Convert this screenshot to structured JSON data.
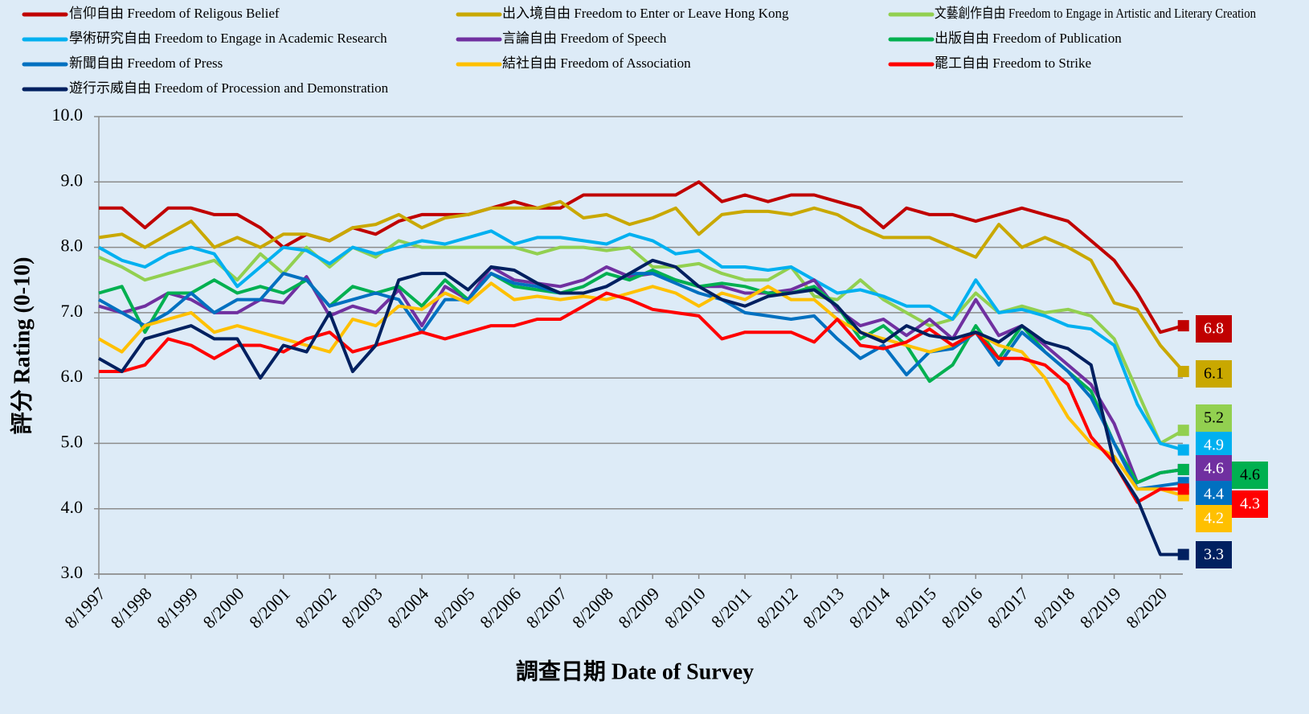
{
  "chart_data": {
    "type": "line",
    "xlabel": "調查日期 Date of Survey",
    "ylabel": "評分 Rating (0-10)",
    "categories": [
      "8/1997",
      null,
      "8/1998",
      null,
      "8/1999",
      null,
      "8/2000",
      null,
      "8/2001",
      null,
      "8/2002",
      null,
      "8/2003",
      null,
      "8/2004",
      null,
      "8/2005",
      null,
      "8/2006",
      null,
      "8/2007",
      null,
      "8/2008",
      null,
      "8/2009",
      null,
      "8/2010",
      null,
      "8/2011",
      null,
      "8/2012",
      null,
      "8/2013",
      null,
      "8/2014",
      null,
      "8/2015",
      null,
      "8/2016",
      null,
      "8/2017",
      null,
      "8/2018",
      null,
      "8/2019",
      null,
      "8/2020",
      null
    ],
    "ylim": [
      3,
      10
    ],
    "yticks": [
      {
        "value": 3,
        "label": "3.0"
      },
      {
        "value": 4,
        "label": "4.0"
      },
      {
        "value": 5,
        "label": "5.0"
      },
      {
        "value": 6,
        "label": "6.0"
      },
      {
        "value": 7,
        "label": "7.0"
      },
      {
        "value": 8,
        "label": "8.0"
      },
      {
        "value": 9,
        "label": "9.0"
      },
      {
        "value": 10,
        "label": "10.0"
      }
    ],
    "grid": true,
    "legend": "top",
    "series": [
      {
        "name": "信仰自由 Freedom of Religous Belief",
        "color": "#C00000",
        "values": [
          8.6,
          8.6,
          8.3,
          8.6,
          8.6,
          8.5,
          8.5,
          8.3,
          8.0,
          8.2,
          8.1,
          8.3,
          8.2,
          8.4,
          8.5,
          8.5,
          8.5,
          8.6,
          8.7,
          8.6,
          8.6,
          8.8,
          8.8,
          8.8,
          8.8,
          8.8,
          9.0,
          8.7,
          8.8,
          8.7,
          8.8,
          8.8,
          8.7,
          8.6,
          8.3,
          8.6,
          8.5,
          8.5,
          8.4,
          8.5,
          8.6,
          8.5,
          8.4,
          8.1,
          7.8,
          7.3,
          6.7,
          6.8
        ]
      },
      {
        "name": "出入境自由 Freedom to Enter or Leave Hong Kong",
        "color": "#C9A800",
        "values": [
          8.15,
          8.2,
          8.0,
          8.2,
          8.4,
          8.0,
          8.15,
          8.0,
          8.2,
          8.2,
          8.1,
          8.3,
          8.35,
          8.5,
          8.3,
          8.45,
          8.5,
          8.6,
          8.6,
          8.6,
          8.7,
          8.45,
          8.5,
          8.35,
          8.45,
          8.6,
          8.2,
          8.5,
          8.55,
          8.55,
          8.5,
          8.6,
          8.5,
          8.3,
          8.15,
          8.15,
          8.15,
          8.0,
          7.85,
          8.35,
          8.0,
          8.15,
          8.0,
          7.8,
          7.15,
          7.05,
          6.5,
          6.1
        ]
      },
      {
        "name": "文藝創作自由 Freedom to Engage in Artistic and Literary Creation",
        "color": "#92D050",
        "values": [
          7.85,
          7.7,
          7.5,
          7.6,
          7.7,
          7.8,
          7.5,
          7.9,
          7.6,
          8.0,
          7.7,
          8.0,
          7.85,
          8.1,
          8.0,
          8.0,
          8.0,
          8.0,
          8.0,
          7.9,
          8.0,
          8.0,
          7.95,
          8.0,
          7.7,
          7.7,
          7.75,
          7.6,
          7.5,
          7.5,
          7.7,
          7.25,
          7.2,
          7.5,
          7.2,
          7.0,
          6.8,
          6.9,
          7.3,
          7.0,
          7.1,
          7.0,
          7.05,
          6.95,
          6.6,
          5.8,
          5.0,
          5.2
        ]
      },
      {
        "name": "學術研究自由 Freedom to Engage in Academic Research",
        "color": "#00B0F0",
        "values": [
          8.0,
          7.8,
          7.7,
          7.9,
          8.0,
          7.9,
          7.4,
          7.7,
          8.0,
          7.95,
          7.75,
          8.0,
          7.9,
          8.0,
          8.1,
          8.05,
          8.15,
          8.25,
          8.05,
          8.15,
          8.15,
          8.1,
          8.05,
          8.2,
          8.1,
          7.9,
          7.95,
          7.7,
          7.7,
          7.65,
          7.7,
          7.5,
          7.3,
          7.35,
          7.25,
          7.1,
          7.1,
          6.9,
          7.5,
          7.0,
          7.05,
          6.95,
          6.8,
          6.75,
          6.5,
          5.6,
          5.0,
          4.9
        ]
      },
      {
        "name": "言論自由 Freedom of Speech",
        "color": "#7030A0",
        "values": [
          7.1,
          7.0,
          7.1,
          7.3,
          7.2,
          7.0,
          7.0,
          7.2,
          7.15,
          7.55,
          6.95,
          7.1,
          7.0,
          7.35,
          6.8,
          7.4,
          7.2,
          7.7,
          7.5,
          7.45,
          7.4,
          7.5,
          7.7,
          7.55,
          7.6,
          7.5,
          7.4,
          7.4,
          7.3,
          7.3,
          7.35,
          7.5,
          7.05,
          6.8,
          6.9,
          6.65,
          6.9,
          6.6,
          7.2,
          6.65,
          6.8,
          6.5,
          6.2,
          5.9,
          5.3,
          4.4,
          4.55,
          4.6
        ]
      },
      {
        "name": "出版自由 Freedom of Publication",
        "color": "#00B050",
        "values": [
          7.3,
          7.4,
          6.7,
          7.3,
          7.3,
          7.5,
          7.3,
          7.4,
          7.3,
          7.5,
          7.1,
          7.4,
          7.3,
          7.4,
          7.1,
          7.5,
          7.2,
          7.6,
          7.4,
          7.35,
          7.3,
          7.4,
          7.6,
          7.5,
          7.65,
          7.5,
          7.4,
          7.45,
          7.4,
          7.3,
          7.3,
          7.4,
          7.1,
          6.6,
          6.8,
          6.5,
          5.95,
          6.2,
          6.8,
          6.3,
          6.8,
          6.4,
          6.1,
          5.8,
          5.0,
          4.4,
          4.55,
          4.6
        ]
      },
      {
        "name": "新聞自由 Freedom of Press",
        "color": "#0070C0",
        "values": [
          7.2,
          7.0,
          6.8,
          7.0,
          7.3,
          7.0,
          7.2,
          7.2,
          7.6,
          7.5,
          7.1,
          7.2,
          7.3,
          7.2,
          6.7,
          7.2,
          7.2,
          7.6,
          7.45,
          7.4,
          7.3,
          7.3,
          7.4,
          7.6,
          7.6,
          7.45,
          7.3,
          7.2,
          7.0,
          6.95,
          6.9,
          6.95,
          6.6,
          6.3,
          6.5,
          6.05,
          6.4,
          6.45,
          6.7,
          6.2,
          6.7,
          6.4,
          6.1,
          5.7,
          5.0,
          4.3,
          4.35,
          4.4
        ]
      },
      {
        "name": "結社自由 Freedom of Association",
        "color": "#FFC000",
        "values": [
          6.6,
          6.4,
          6.8,
          6.9,
          7.0,
          6.7,
          6.8,
          6.7,
          6.6,
          6.5,
          6.4,
          6.9,
          6.8,
          7.1,
          7.05,
          7.3,
          7.15,
          7.45,
          7.2,
          7.25,
          7.2,
          7.25,
          7.2,
          7.3,
          7.4,
          7.3,
          7.1,
          7.3,
          7.2,
          7.4,
          7.2,
          7.2,
          6.9,
          6.7,
          6.6,
          6.5,
          6.4,
          6.5,
          6.7,
          6.5,
          6.4,
          6.0,
          5.4,
          5.0,
          4.8,
          4.3,
          4.3,
          4.2
        ]
      },
      {
        "name": "罷工自由 Freedom to Strike",
        "color": "#FF0000",
        "values": [
          6.1,
          6.1,
          6.2,
          6.6,
          6.5,
          6.3,
          6.5,
          6.5,
          6.4,
          6.6,
          6.7,
          6.4,
          6.5,
          6.6,
          6.7,
          6.6,
          6.7,
          6.8,
          6.8,
          6.9,
          6.9,
          7.1,
          7.3,
          7.2,
          7.05,
          7.0,
          6.95,
          6.6,
          6.7,
          6.7,
          6.7,
          6.55,
          6.9,
          6.5,
          6.45,
          6.55,
          6.75,
          6.5,
          6.7,
          6.3,
          6.3,
          6.2,
          5.9,
          5.1,
          4.7,
          4.1,
          4.3,
          4.3
        ]
      },
      {
        "name": "遊行示威自由 Freedom of Procession and Demonstration",
        "color": "#002060",
        "values": [
          6.3,
          6.1,
          6.6,
          6.7,
          6.8,
          6.6,
          6.6,
          6.0,
          6.5,
          6.4,
          7.0,
          6.1,
          6.5,
          7.5,
          7.6,
          7.6,
          7.35,
          7.7,
          7.65,
          7.45,
          7.3,
          7.3,
          7.4,
          7.6,
          7.8,
          7.7,
          7.4,
          7.2,
          7.1,
          7.25,
          7.3,
          7.35,
          7.1,
          6.7,
          6.55,
          6.8,
          6.65,
          6.6,
          6.7,
          6.55,
          6.8,
          6.55,
          6.45,
          6.2,
          4.7,
          4.15,
          3.3,
          3.3
        ]
      }
    ]
  }
}
